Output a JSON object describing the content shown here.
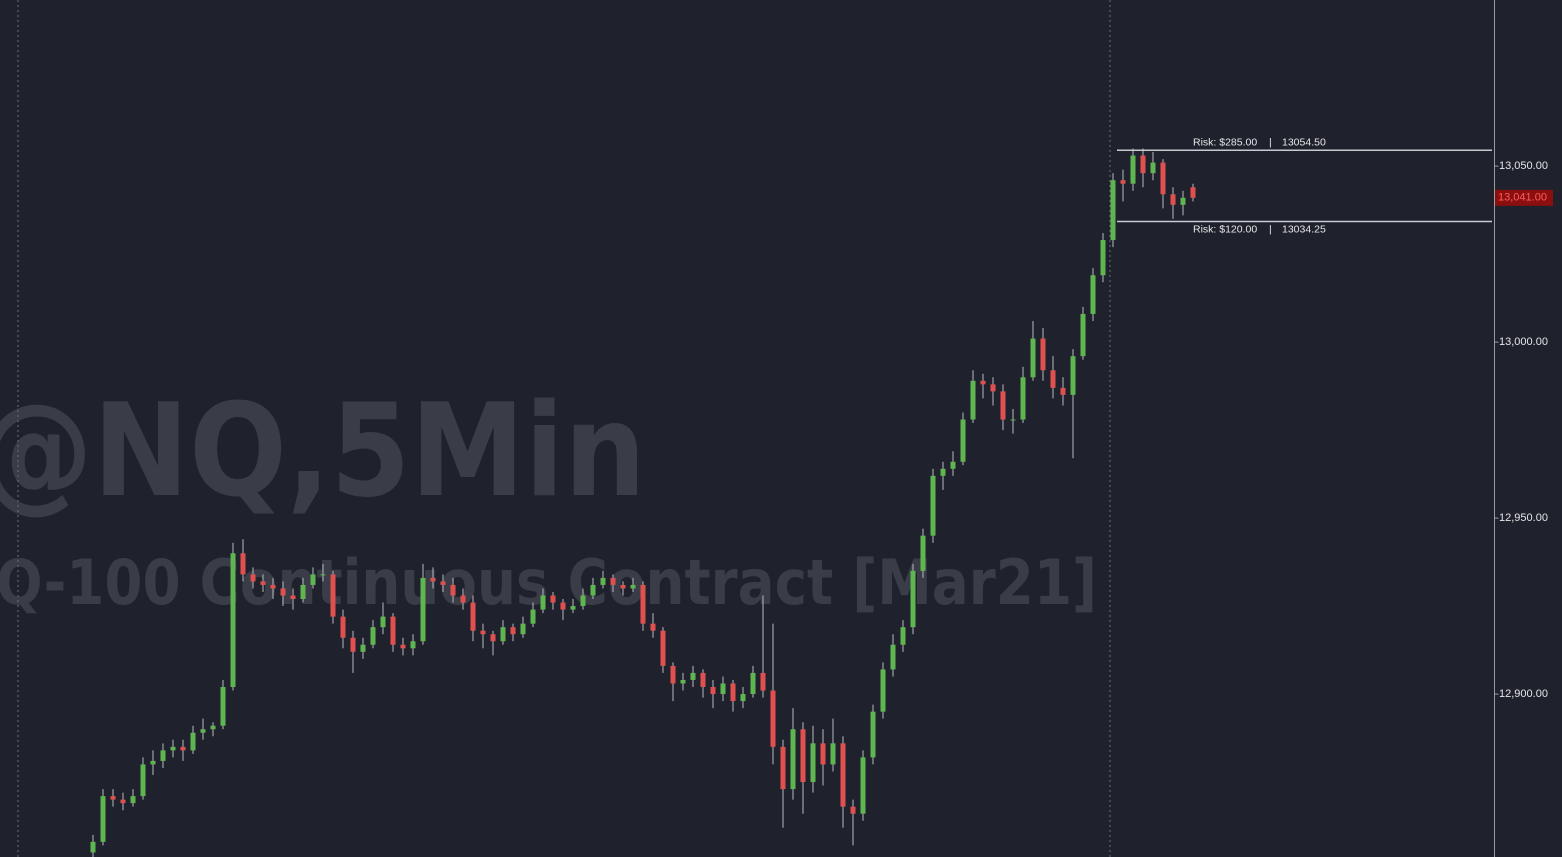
{
  "chart_data": {
    "type": "candlestick",
    "watermark_symbol": "@NQ,5Min",
    "watermark_description": "Q-100 Continuous Contract [Mar21]",
    "up_color": "#5fb54f",
    "down_color": "#e0504f",
    "ylim": [
      12853.7,
      13097.2
    ],
    "yticks": [
      {
        "value": 12900,
        "label": "12,900.00"
      },
      {
        "value": 12950,
        "label": "12,950.00"
      },
      {
        "value": 13000,
        "label": "13,000.00"
      },
      {
        "value": 13050,
        "label": "13,050.00"
      }
    ],
    "current_price": {
      "value": 13041,
      "label": "13,041.00"
    },
    "risk_lines": [
      {
        "label": "Risk: $285.00",
        "separator": "|",
        "price": {
          "value": 13054.5,
          "label": "13054.50"
        },
        "label_position": "above"
      },
      {
        "label": "Risk: $120.00",
        "separator": "|",
        "price": {
          "value": 13034.25,
          "label": "13034.25"
        },
        "label_position": "below"
      }
    ],
    "candles": [
      [
        12855,
        12860,
        12853,
        12858
      ],
      [
        12858,
        12873,
        12857,
        12871
      ],
      [
        12871,
        12873,
        12868,
        12870
      ],
      [
        12870,
        12872,
        12867,
        12869
      ],
      [
        12869,
        12873,
        12868,
        12871
      ],
      [
        12871,
        12882,
        12870,
        12880
      ],
      [
        12880,
        12884,
        12877,
        12881
      ],
      [
        12881,
        12886,
        12879,
        12884
      ],
      [
        12884,
        12887,
        12882,
        12885
      ],
      [
        12885,
        12887,
        12881,
        12884
      ],
      [
        12884,
        12891,
        12883,
        12889
      ],
      [
        12889,
        12893,
        12887,
        12890
      ],
      [
        12890,
        12892,
        12888,
        12891
      ],
      [
        12891,
        12904,
        12890,
        12902
      ],
      [
        12902,
        12943,
        12901,
        12940
      ],
      [
        12940,
        12944,
        12932,
        12934
      ],
      [
        12934,
        12936,
        12930,
        12932
      ],
      [
        12932,
        12934,
        12929,
        12931
      ],
      [
        12931,
        12933,
        12927,
        12930
      ],
      [
        12930,
        12932,
        12925,
        12928
      ],
      [
        12928,
        12930,
        12924,
        12927
      ],
      [
        12927,
        12933,
        12926,
        12931
      ],
      [
        12931,
        12936,
        12930,
        12934
      ],
      [
        12934,
        12937,
        12932,
        12934
      ],
      [
        12934,
        12935,
        12920,
        12922
      ],
      [
        12922,
        12924,
        12913,
        12916
      ],
      [
        12916,
        12918,
        12906,
        12912
      ],
      [
        12912,
        12916,
        12910,
        12914
      ],
      [
        12914,
        12921,
        12913,
        12919
      ],
      [
        12919,
        12926,
        12917,
        12922
      ],
      [
        12922,
        12923,
        12912,
        12914
      ],
      [
        12914,
        12916,
        12911,
        12913
      ],
      [
        12913,
        12917,
        12911,
        12915
      ],
      [
        12915,
        12937,
        12914,
        12933
      ],
      [
        12933,
        12936,
        12930,
        12932
      ],
      [
        12932,
        12934,
        12929,
        12931
      ],
      [
        12931,
        12933,
        12926,
        12928
      ],
      [
        12928,
        12930,
        12924,
        12926
      ],
      [
        12926,
        12928,
        12915,
        12918
      ],
      [
        12918,
        12920,
        12913,
        12917
      ],
      [
        12917,
        12918,
        12911,
        12915
      ],
      [
        12915,
        12921,
        12914,
        12919
      ],
      [
        12919,
        12920,
        12915,
        12917
      ],
      [
        12917,
        12922,
        12916,
        12920
      ],
      [
        12920,
        12926,
        12919,
        12924
      ],
      [
        12924,
        12930,
        12923,
        12928
      ],
      [
        12928,
        12929,
        12924,
        12926
      ],
      [
        12926,
        12927,
        12921,
        12924
      ],
      [
        12924,
        12927,
        12923,
        12925
      ],
      [
        12925,
        12930,
        12924,
        12928
      ],
      [
        12928,
        12933,
        12927,
        12931
      ],
      [
        12931,
        12935,
        12930,
        12933
      ],
      [
        12933,
        12934,
        12929,
        12931
      ],
      [
        12931,
        12932,
        12928,
        12930
      ],
      [
        12930,
        12933,
        12929,
        12931
      ],
      [
        12931,
        12932,
        12918,
        12920
      ],
      [
        12920,
        12923,
        12916,
        12918
      ],
      [
        12918,
        12919,
        12906,
        12908
      ],
      [
        12908,
        12909,
        12898,
        12903
      ],
      [
        12903,
        12906,
        12901,
        12904
      ],
      [
        12904,
        12908,
        12902,
        12906
      ],
      [
        12906,
        12907,
        12899,
        12902
      ],
      [
        12902,
        12904,
        12896,
        12900
      ],
      [
        12900,
        12905,
        12898,
        12903
      ],
      [
        12903,
        12904,
        12895,
        12898
      ],
      [
        12898,
        12902,
        12896,
        12900
      ],
      [
        12900,
        12908,
        12899,
        12906
      ],
      [
        12906,
        12928,
        12899,
        12901
      ],
      [
        12901,
        12920,
        12880,
        12885
      ],
      [
        12885,
        12887,
        12862,
        12873
      ],
      [
        12873,
        12896,
        12870,
        12890
      ],
      [
        12890,
        12892,
        12866,
        12875
      ],
      [
        12875,
        12891,
        12872,
        12886
      ],
      [
        12886,
        12890,
        12874,
        12880
      ],
      [
        12880,
        12893,
        12878,
        12886
      ],
      [
        12886,
        12888,
        12862,
        12868
      ],
      [
        12868,
        12870,
        12857,
        12866
      ],
      [
        12866,
        12884,
        12864,
        12882
      ],
      [
        12882,
        12897,
        12880,
        12895
      ],
      [
        12895,
        12909,
        12893,
        12907
      ],
      [
        12907,
        12917,
        12905,
        12914
      ],
      [
        12914,
        12921,
        12912,
        12919
      ],
      [
        12919,
        12937,
        12917,
        12935
      ],
      [
        12935,
        12947,
        12933,
        12945
      ],
      [
        12945,
        12964,
        12943,
        12962
      ],
      [
        12962,
        12966,
        12958,
        12964
      ],
      [
        12964,
        12969,
        12962,
        12966
      ],
      [
        12966,
        12980,
        12965,
        12978
      ],
      [
        12978,
        12992,
        12977,
        12989
      ],
      [
        12989,
        12991,
        12984,
        12988
      ],
      [
        12988,
        12990,
        12982,
        12986
      ],
      [
        12986,
        12988,
        12975,
        12978
      ],
      [
        12978,
        12981,
        12974,
        12978
      ],
      [
        12978,
        12993,
        12977,
        12990
      ],
      [
        12990,
        13006,
        12989,
        13001
      ],
      [
        13001,
        13004,
        12989,
        12992
      ],
      [
        12992,
        12996,
        12984,
        12987
      ],
      [
        12987,
        12990,
        12982,
        12985
      ],
      [
        12985,
        12998,
        12967,
        12996
      ],
      [
        12996,
        13010,
        12995,
        13008
      ],
      [
        13008,
        13021,
        13006,
        13019
      ],
      [
        13019,
        13031,
        13017,
        13029
      ],
      [
        13029,
        13048,
        13027,
        13046
      ],
      [
        13046,
        13049,
        13040,
        13045
      ],
      [
        13045,
        13055,
        13043,
        13053
      ],
      [
        13053,
        13055,
        13044,
        13048
      ],
      [
        13048,
        13054,
        13046,
        13051
      ],
      [
        13051,
        13052,
        13038,
        13042
      ],
      [
        13042,
        13044,
        13035,
        13039
      ],
      [
        13039,
        13043,
        13036,
        13041
      ],
      [
        13044,
        13045,
        13040,
        13041
      ]
    ]
  }
}
